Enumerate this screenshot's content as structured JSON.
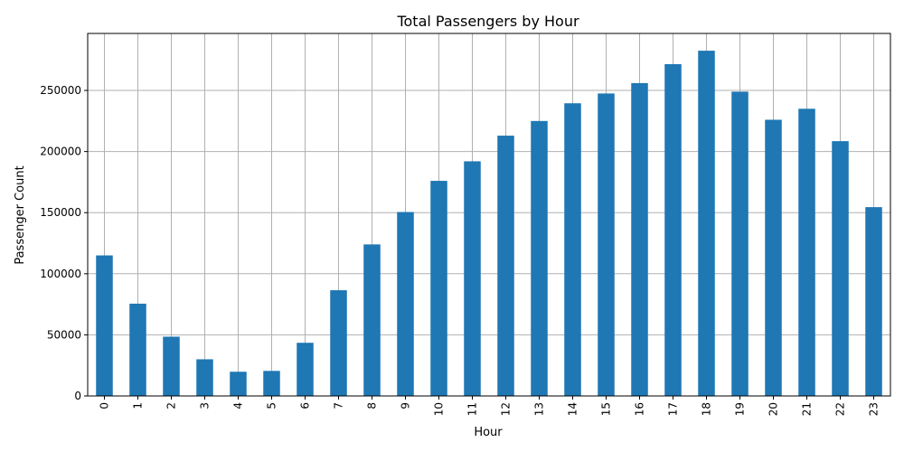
{
  "chart_data": {
    "type": "bar",
    "title": "Total Passengers by Hour",
    "xlabel": "Hour",
    "ylabel": "Passenger Count",
    "categories": [
      "0",
      "1",
      "2",
      "3",
      "4",
      "5",
      "6",
      "7",
      "8",
      "9",
      "10",
      "11",
      "12",
      "13",
      "14",
      "15",
      "16",
      "17",
      "18",
      "19",
      "20",
      "21",
      "22",
      "23"
    ],
    "values": [
      115000,
      75500,
      48500,
      30000,
      19800,
      20500,
      43500,
      86500,
      124000,
      150500,
      176000,
      192000,
      213000,
      225000,
      239500,
      247500,
      256000,
      271500,
      282500,
      249000,
      226000,
      235000,
      208500,
      154500
    ],
    "yticks": [
      0,
      50000,
      100000,
      150000,
      200000,
      250000
    ],
    "ylim": [
      0,
      296625
    ],
    "grid": true,
    "bar_color": "#1f77b4",
    "x_tick_rotation": "vertical"
  }
}
